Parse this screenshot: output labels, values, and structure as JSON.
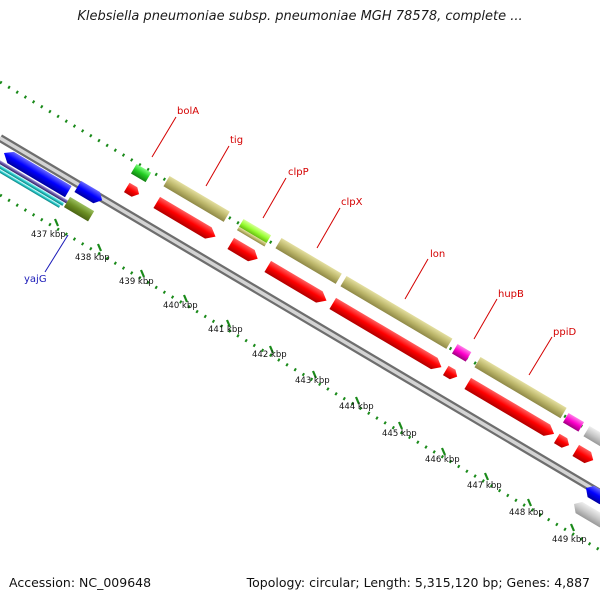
{
  "title": "Klebsiella pneumoniae subsp. pneumoniae MGH 78578, complete ...",
  "footer": {
    "accession": "Accession: NC_009648",
    "summary": "Topology: circular; Length: 5,315,120 bp; Genes: 4,887"
  },
  "scale_labels": [
    "437 kbp",
    "438 kbp",
    "439 kbp",
    "440 kbp",
    "441 kbp",
    "442 kbp",
    "443 kbp",
    "444 kbp",
    "445 kbp",
    "446 kbp",
    "447 kbp",
    "448 kbp",
    "449 kbp"
  ],
  "gene_labels": [
    {
      "name": "bolA",
      "color": "#d40000"
    },
    {
      "name": "tig",
      "color": "#d40000"
    },
    {
      "name": "clpP",
      "color": "#d40000"
    },
    {
      "name": "clpX",
      "color": "#d40000"
    },
    {
      "name": "lon",
      "color": "#d40000"
    },
    {
      "name": "hupB",
      "color": "#d40000"
    },
    {
      "name": "ppiD",
      "color": "#d40000"
    },
    {
      "name": "yajG",
      "color": "#1a1ab8"
    }
  ],
  "colors": {
    "gene_red": "#ff0000",
    "cds_olive": "#bdb76b",
    "gene_green": "#22cc22",
    "gene_lime": "#99ff33",
    "gene_magenta": "#ff00cc",
    "gene_blue": "#0000ff",
    "gene_gray": "#c8c8c8",
    "backbone": "#8a8a8a",
    "tick_green": "#1a8a1a"
  }
}
